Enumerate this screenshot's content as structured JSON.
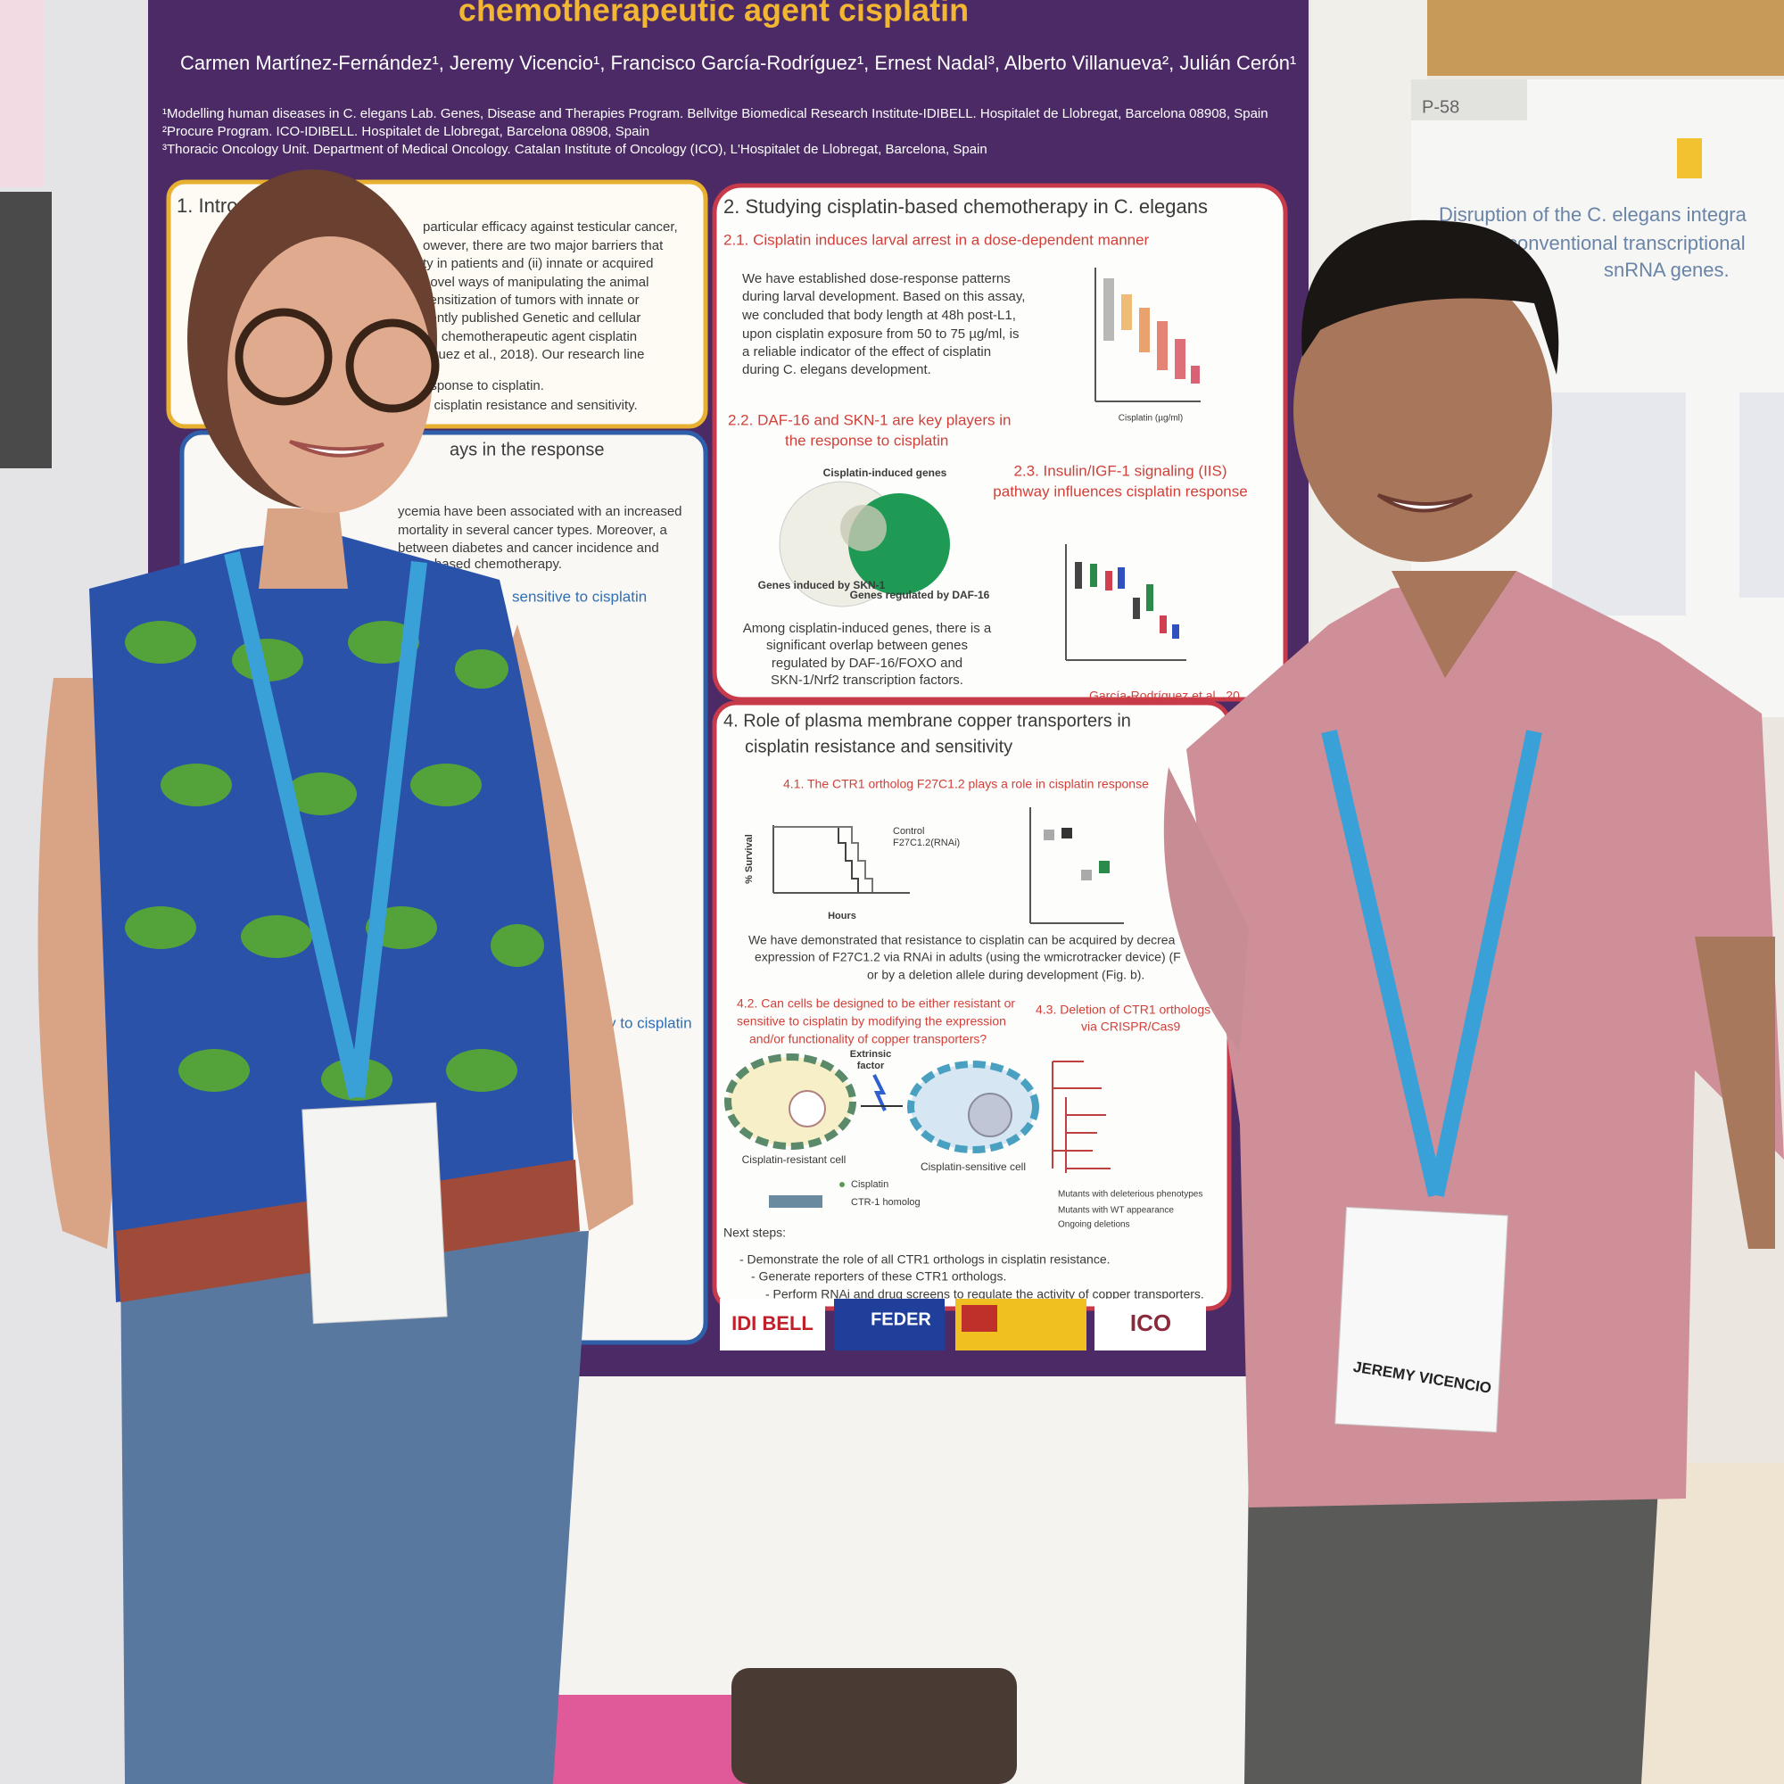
{
  "poster": {
    "title": "chemotherapeutic agent cisplatin",
    "authors": "Carmen Martínez-Fernández¹,  Jeremy Vicencio¹, Francisco García-Rodríguez¹, Ernest Nadal³, Alberto Villanueva², Julián Cerón¹",
    "affiliations": [
      "¹Modelling human diseases in C. elegans Lab. Genes, Disease and Therapies Program. Bellvitge Biomedical Research Institute-IDIBELL. Hospitalet de Llobregat, Barcelona 08908, Spain",
      "²Procure Program. ICO-IDIBELL. Hospitalet de Llobregat, Barcelona 08908, Spain",
      "³Thoracic Oncology Unit. Department of Medical Oncology. Catalan Institute of Oncology (ICO), L'Hospitalet de Llobregat, Barcelona, Spain"
    ],
    "section1": {
      "title": "1. Introd",
      "lines": [
        "particular efficacy against testicular cancer,",
        "owever, there are two major barriers that",
        "ty in patients and (ii) innate or acquired",
        "novel ways of manipulating the animal",
        "sensitization of tumors with innate or",
        "cently published Genetic and cellular",
        "he chemotherapeutic agent cisplatin",
        "ríguez et al., 2018). Our research line",
        "esponse to cisplatin.",
        "n cisplatin resistance and sensitivity."
      ]
    },
    "section3": {
      "title": "ays in the response",
      "lines": [
        "ycemia have been associated with an increased",
        "mortality in several cancer types. Moreover, a",
        "between diabetes and cancer incidence and",
        "platin-based chemotherapy."
      ],
      "subtitle_a": "sensitive to cisplatin",
      "subtitle_b": "y to cisplatin"
    },
    "section2": {
      "title": "2. Studying cisplatin-based chemotherapy in C. elegans",
      "sub1": "2.1. Cisplatin induces larval arrest in a dose-dependent manner",
      "sub1_lines": [
        "We have established dose-response patterns",
        "during larval development. Based on this assay,",
        "we concluded that body length at 48h post-L1,",
        "upon cisplatin exposure from 50 to 75 µg/ml, is",
        "a reliable indicator of the effect of cisplatin",
        "during C. elegans development."
      ],
      "dose_axis": "Cisplatin (µg/ml)",
      "sub2": [
        "2.2. DAF-16 and SKN-1 are key players in",
        "the response to cisplatin"
      ],
      "venn": [
        "Cisplatin-induced genes",
        "Genes induced by SKN-1",
        "Genes regulated by DAF-16"
      ],
      "sub2_lines": [
        "Among cisplatin-induced genes, there is a",
        "significant overlap between genes",
        "regulated by DAF-16/FOXO and",
        "SKN-1/Nrf2 transcription factors."
      ],
      "sub3": [
        "2.3. Insulin/IGF-1 signaling (IIS)",
        "pathway influences cisplatin response"
      ],
      "citation": "García-Rodríguez et al., 20"
    },
    "section4": {
      "title": [
        "4. Role of plasma membrane copper transporters in",
        "cisplatin resistance and sensitivity"
      ],
      "sub1": "4.1. The CTR1 ortholog F27C1.2 plays a role in cisplatin response",
      "legend": [
        "Control",
        "F27C1.2(RNAi)"
      ],
      "x_label": "Hours",
      "y_label": "% Survival",
      "sub1_lines": [
        "We have demonstrated that resistance to cisplatin can be acquired by decrea",
        "expression of F27C1.2 via RNAi in adults (using the wmicrotracker device) (F",
        "or by a deletion allele during development (Fig. b)."
      ],
      "sub2": [
        "4.2. Can cells be designed to be either resistant or",
        "sensitive to cisplatin by modifying the expression",
        "and/or functionality of copper transporters?"
      ],
      "sub3": [
        "4.3. Deletion of CTR1 orthologs",
        "via CRISPR/Cas9"
      ],
      "factor": [
        "Extrinsic",
        "factor"
      ],
      "cells": [
        "Cisplatin-resistant cell",
        "Cisplatin-sensitive cell"
      ],
      "cell_legend": [
        "Cisplatin",
        "CTR-1 homolog"
      ],
      "tree_legend": [
        "Mutants with deleterious phenotypes",
        "Mutants with WT appearance",
        "Ongoing deletions"
      ],
      "next_title": "Next steps:",
      "next_lines": [
        "- Demonstrate the role of all CTR1 orthologs in cisplatin resistance.",
        "- Generate reporters of these CTR1 orthologs.",
        "- Perform RNAi and drug screens to regulate the activity of copper transporters."
      ]
    },
    "logos": [
      "IDI BELL",
      "FEDER",
      "ICO"
    ]
  },
  "other_poster": {
    "label": "P-58",
    "title": [
      "Disruption of the C. elegans integra",
      "conventional transcriptional",
      "snRNA genes."
    ]
  },
  "badge": {
    "name": "JEREMY VICENCIO"
  }
}
